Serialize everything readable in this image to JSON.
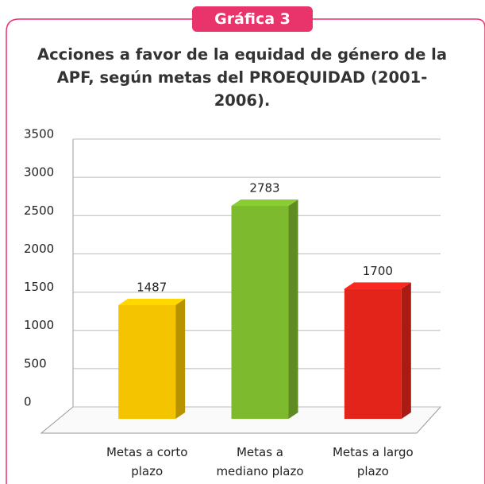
{
  "badge": "Gráfica 3",
  "chart_data": {
    "type": "bar",
    "title": "Acciones a favor de la equidad de género de la APF, según metas del PROEQUIDAD (2001-2006).",
    "categories": [
      "Metas a corto plazo",
      "Metas a mediano plazo",
      "Metas a largo plazo"
    ],
    "values": [
      1487,
      2783,
      1700
    ],
    "colors": [
      "#f5c400",
      "#7dba2e",
      "#e3241b"
    ],
    "ylim": [
      0,
      3500
    ],
    "yticks": [
      0,
      500,
      1000,
      1500,
      2000,
      2500,
      3000,
      3500
    ],
    "grid": true
  }
}
